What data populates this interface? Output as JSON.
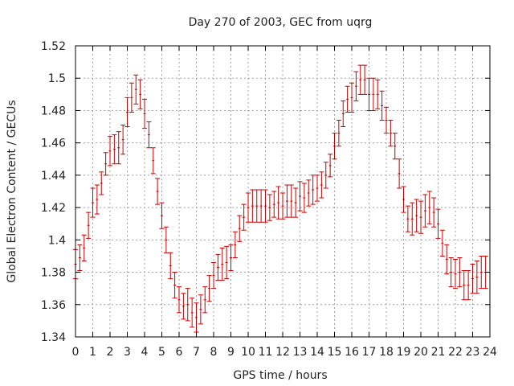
{
  "chart_data": {
    "type": "scatter",
    "title": "Day 270 of 2003, GEC from uqrg",
    "xlabel": "GPS time / hours",
    "ylabel": "Global Electron Content / GECUs",
    "xlim": [
      0,
      24
    ],
    "ylim": [
      1.34,
      1.52
    ],
    "grid": true,
    "error_bars": true,
    "color": "#cc0000",
    "x_ticks": [
      "0",
      "1",
      "2",
      "3",
      "4",
      "5",
      "6",
      "7",
      "8",
      "9",
      "10",
      "11",
      "12",
      "13",
      "14",
      "15",
      "16",
      "17",
      "18",
      "19",
      "20",
      "21",
      "22",
      "23",
      "24"
    ],
    "y_ticks": [
      "1.34",
      "1.36",
      "1.38",
      "1.4",
      "1.42",
      "1.44",
      "1.46",
      "1.48",
      "1.5",
      "1.52"
    ],
    "points": [
      {
        "x": 0.0,
        "y": 1.385,
        "err": 0.009
      },
      {
        "x": 0.25,
        "y": 1.389,
        "err": 0.008
      },
      {
        "x": 0.5,
        "y": 1.395,
        "err": 0.008
      },
      {
        "x": 0.75,
        "y": 1.409,
        "err": 0.008
      },
      {
        "x": 1.0,
        "y": 1.423,
        "err": 0.009
      },
      {
        "x": 1.25,
        "y": 1.425,
        "err": 0.009
      },
      {
        "x": 1.5,
        "y": 1.435,
        "err": 0.007
      },
      {
        "x": 1.75,
        "y": 1.447,
        "err": 0.007
      },
      {
        "x": 2.0,
        "y": 1.455,
        "err": 0.009
      },
      {
        "x": 2.25,
        "y": 1.456,
        "err": 0.009
      },
      {
        "x": 2.5,
        "y": 1.457,
        "err": 0.01
      },
      {
        "x": 2.75,
        "y": 1.462,
        "err": 0.009
      },
      {
        "x": 3.0,
        "y": 1.479,
        "err": 0.009
      },
      {
        "x": 3.25,
        "y": 1.488,
        "err": 0.009
      },
      {
        "x": 3.5,
        "y": 1.493,
        "err": 0.009
      },
      {
        "x": 3.75,
        "y": 1.49,
        "err": 0.009
      },
      {
        "x": 4.0,
        "y": 1.478,
        "err": 0.009
      },
      {
        "x": 4.25,
        "y": 1.465,
        "err": 0.008
      },
      {
        "x": 4.5,
        "y": 1.449,
        "err": 0.008
      },
      {
        "x": 4.75,
        "y": 1.43,
        "err": 0.008
      },
      {
        "x": 5.0,
        "y": 1.415,
        "err": 0.008
      },
      {
        "x": 5.25,
        "y": 1.4,
        "err": 0.008
      },
      {
        "x": 5.5,
        "y": 1.384,
        "err": 0.008
      },
      {
        "x": 5.75,
        "y": 1.372,
        "err": 0.008
      },
      {
        "x": 6.0,
        "y": 1.363,
        "err": 0.008
      },
      {
        "x": 6.25,
        "y": 1.359,
        "err": 0.008
      },
      {
        "x": 6.5,
        "y": 1.36,
        "err": 0.01
      },
      {
        "x": 6.75,
        "y": 1.355,
        "err": 0.009
      },
      {
        "x": 7.0,
        "y": 1.352,
        "err": 0.009
      },
      {
        "x": 7.25,
        "y": 1.357,
        "err": 0.009
      },
      {
        "x": 7.5,
        "y": 1.363,
        "err": 0.008
      },
      {
        "x": 7.75,
        "y": 1.37,
        "err": 0.008
      },
      {
        "x": 8.0,
        "y": 1.378,
        "err": 0.008
      },
      {
        "x": 8.25,
        "y": 1.383,
        "err": 0.008
      },
      {
        "x": 8.5,
        "y": 1.385,
        "err": 0.01
      },
      {
        "x": 8.75,
        "y": 1.386,
        "err": 0.01
      },
      {
        "x": 9.0,
        "y": 1.389,
        "err": 0.008
      },
      {
        "x": 9.25,
        "y": 1.397,
        "err": 0.008
      },
      {
        "x": 9.5,
        "y": 1.407,
        "err": 0.008
      },
      {
        "x": 9.75,
        "y": 1.414,
        "err": 0.008
      },
      {
        "x": 10.0,
        "y": 1.42,
        "err": 0.009
      },
      {
        "x": 10.25,
        "y": 1.421,
        "err": 0.01
      },
      {
        "x": 10.5,
        "y": 1.421,
        "err": 0.01
      },
      {
        "x": 10.75,
        "y": 1.421,
        "err": 0.01
      },
      {
        "x": 11.0,
        "y": 1.421,
        "err": 0.01
      },
      {
        "x": 11.25,
        "y": 1.42,
        "err": 0.008
      },
      {
        "x": 11.5,
        "y": 1.422,
        "err": 0.008
      },
      {
        "x": 11.75,
        "y": 1.423,
        "err": 0.01
      },
      {
        "x": 12.0,
        "y": 1.421,
        "err": 0.008
      },
      {
        "x": 12.25,
        "y": 1.424,
        "err": 0.01
      },
      {
        "x": 12.5,
        "y": 1.424,
        "err": 0.01
      },
      {
        "x": 12.75,
        "y": 1.423,
        "err": 0.009
      },
      {
        "x": 13.0,
        "y": 1.427,
        "err": 0.009
      },
      {
        "x": 13.25,
        "y": 1.426,
        "err": 0.009
      },
      {
        "x": 13.5,
        "y": 1.429,
        "err": 0.008
      },
      {
        "x": 13.75,
        "y": 1.431,
        "err": 0.009
      },
      {
        "x": 14.0,
        "y": 1.432,
        "err": 0.008
      },
      {
        "x": 14.25,
        "y": 1.434,
        "err": 0.008
      },
      {
        "x": 14.5,
        "y": 1.44,
        "err": 0.008
      },
      {
        "x": 14.75,
        "y": 1.446,
        "err": 0.007
      },
      {
        "x": 15.0,
        "y": 1.458,
        "err": 0.008
      },
      {
        "x": 15.25,
        "y": 1.466,
        "err": 0.008
      },
      {
        "x": 15.5,
        "y": 1.478,
        "err": 0.008
      },
      {
        "x": 15.75,
        "y": 1.487,
        "err": 0.008
      },
      {
        "x": 16.0,
        "y": 1.488,
        "err": 0.009
      },
      {
        "x": 16.25,
        "y": 1.495,
        "err": 0.009
      },
      {
        "x": 16.5,
        "y": 1.499,
        "err": 0.009
      },
      {
        "x": 16.75,
        "y": 1.499,
        "err": 0.009
      },
      {
        "x": 17.0,
        "y": 1.49,
        "err": 0.01
      },
      {
        "x": 17.25,
        "y": 1.49,
        "err": 0.01
      },
      {
        "x": 17.5,
        "y": 1.49,
        "err": 0.009
      },
      {
        "x": 17.75,
        "y": 1.483,
        "err": 0.009
      },
      {
        "x": 18.0,
        "y": 1.474,
        "err": 0.008
      },
      {
        "x": 18.25,
        "y": 1.466,
        "err": 0.008
      },
      {
        "x": 18.5,
        "y": 1.458,
        "err": 0.008
      },
      {
        "x": 18.75,
        "y": 1.441,
        "err": 0.009
      },
      {
        "x": 19.0,
        "y": 1.425,
        "err": 0.008
      },
      {
        "x": 19.25,
        "y": 1.413,
        "err": 0.008
      },
      {
        "x": 19.5,
        "y": 1.413,
        "err": 0.01
      },
      {
        "x": 19.75,
        "y": 1.415,
        "err": 0.01
      },
      {
        "x": 20.0,
        "y": 1.414,
        "err": 0.01
      },
      {
        "x": 20.25,
        "y": 1.418,
        "err": 0.01
      },
      {
        "x": 20.5,
        "y": 1.42,
        "err": 0.01
      },
      {
        "x": 20.75,
        "y": 1.417,
        "err": 0.009
      },
      {
        "x": 21.0,
        "y": 1.41,
        "err": 0.009
      },
      {
        "x": 21.25,
        "y": 1.398,
        "err": 0.008
      },
      {
        "x": 21.5,
        "y": 1.388,
        "err": 0.009
      },
      {
        "x": 21.75,
        "y": 1.38,
        "err": 0.009
      },
      {
        "x": 22.0,
        "y": 1.379,
        "err": 0.009
      },
      {
        "x": 22.25,
        "y": 1.38,
        "err": 0.009
      },
      {
        "x": 22.5,
        "y": 1.372,
        "err": 0.009
      },
      {
        "x": 22.75,
        "y": 1.372,
        "err": 0.009
      },
      {
        "x": 23.0,
        "y": 1.376,
        "err": 0.009
      },
      {
        "x": 23.25,
        "y": 1.377,
        "err": 0.01
      },
      {
        "x": 23.5,
        "y": 1.38,
        "err": 0.01
      },
      {
        "x": 23.75,
        "y": 1.38,
        "err": 0.01
      }
    ]
  }
}
